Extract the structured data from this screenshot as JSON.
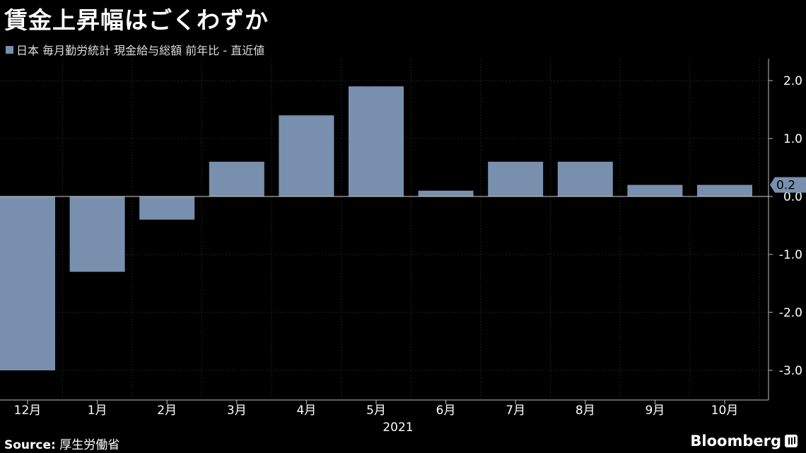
{
  "title": "賃金上昇幅はごくわずか",
  "chart_data": {
    "type": "bar",
    "categories": [
      "12月",
      "1月",
      "2月",
      "3月",
      "4月",
      "5月",
      "6月",
      "7月",
      "8月",
      "9月",
      "10月"
    ],
    "series": [
      {
        "name": "日本 毎月勤労統計  現金給与総額  前年比  - 直近値",
        "values": [
          -3.0,
          -1.3,
          -0.4,
          0.6,
          1.4,
          1.9,
          0.1,
          0.6,
          0.6,
          0.2,
          0.2
        ]
      }
    ],
    "year_label": "2021",
    "y_ticks": [
      "2.0",
      "1.0",
      "0.0",
      "-1.0",
      "-2.0",
      "-3.0"
    ],
    "ylim": [
      -3.5,
      2.3
    ],
    "latest_value_label": "0.2",
    "grid": true,
    "y_axis_side": "right"
  },
  "colors": {
    "bar": "#7890ad",
    "grid": "#3a3a3a",
    "axis": "#bfbfbf",
    "background": "#000000"
  },
  "footer": {
    "source_label": "Source:",
    "source_text": "厚生労働省",
    "brand": "Bloomberg"
  }
}
